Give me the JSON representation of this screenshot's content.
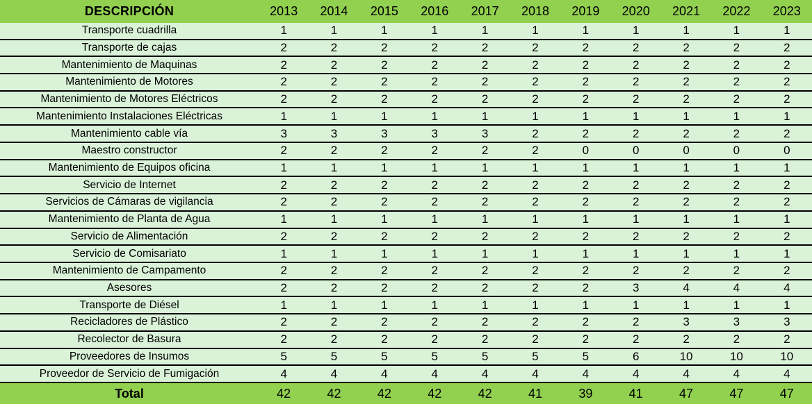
{
  "colors": {
    "header_bg": "#92D050",
    "row_bg": "#DAF2D8",
    "total_bg": "#92D050",
    "row_border": "#000000",
    "text": "#000000"
  },
  "chart_data": {
    "type": "table",
    "title": "",
    "description_header": "DESCRIPCIÓN",
    "years": [
      "2013",
      "2014",
      "2015",
      "2016",
      "2017",
      "2018",
      "2019",
      "2020",
      "2021",
      "2022",
      "2023"
    ],
    "rows": [
      {
        "description": "Transporte cuadrilla",
        "values": [
          1,
          1,
          1,
          1,
          1,
          1,
          1,
          1,
          1,
          1,
          1
        ]
      },
      {
        "description": "Transporte de cajas",
        "values": [
          2,
          2,
          2,
          2,
          2,
          2,
          2,
          2,
          2,
          2,
          2
        ]
      },
      {
        "description": "Mantenimiento de Maquinas",
        "values": [
          2,
          2,
          2,
          2,
          2,
          2,
          2,
          2,
          2,
          2,
          2
        ]
      },
      {
        "description": "Mantenimiento de Motores",
        "values": [
          2,
          2,
          2,
          2,
          2,
          2,
          2,
          2,
          2,
          2,
          2
        ]
      },
      {
        "description": "Mantenimiento de Motores Eléctricos",
        "values": [
          2,
          2,
          2,
          2,
          2,
          2,
          2,
          2,
          2,
          2,
          2
        ]
      },
      {
        "description": "Mantenimiento Instalaciones Eléctricas",
        "values": [
          1,
          1,
          1,
          1,
          1,
          1,
          1,
          1,
          1,
          1,
          1
        ]
      },
      {
        "description": "Mantenimiento cable vía",
        "values": [
          3,
          3,
          3,
          3,
          3,
          2,
          2,
          2,
          2,
          2,
          2
        ]
      },
      {
        "description": "Maestro constructor",
        "values": [
          2,
          2,
          2,
          2,
          2,
          2,
          0,
          0,
          0,
          0,
          0
        ]
      },
      {
        "description": "Mantenimiento de Equipos oficina",
        "values": [
          1,
          1,
          1,
          1,
          1,
          1,
          1,
          1,
          1,
          1,
          1
        ]
      },
      {
        "description": "Servicio de Internet",
        "values": [
          2,
          2,
          2,
          2,
          2,
          2,
          2,
          2,
          2,
          2,
          2
        ]
      },
      {
        "description": "Servicios de Cámaras de vigilancia",
        "values": [
          2,
          2,
          2,
          2,
          2,
          2,
          2,
          2,
          2,
          2,
          2
        ]
      },
      {
        "description": "Mantenimiento de Planta de Agua",
        "values": [
          1,
          1,
          1,
          1,
          1,
          1,
          1,
          1,
          1,
          1,
          1
        ]
      },
      {
        "description": "Servicio de Alimentación",
        "values": [
          2,
          2,
          2,
          2,
          2,
          2,
          2,
          2,
          2,
          2,
          2
        ]
      },
      {
        "description": "Servicio de Comisariato",
        "values": [
          1,
          1,
          1,
          1,
          1,
          1,
          1,
          1,
          1,
          1,
          1
        ]
      },
      {
        "description": "Mantenimiento de Campamento",
        "values": [
          2,
          2,
          2,
          2,
          2,
          2,
          2,
          2,
          2,
          2,
          2
        ]
      },
      {
        "description": "Asesores",
        "values": [
          2,
          2,
          2,
          2,
          2,
          2,
          2,
          3,
          4,
          4,
          4
        ]
      },
      {
        "description": "Transporte de Diésel",
        "values": [
          1,
          1,
          1,
          1,
          1,
          1,
          1,
          1,
          1,
          1,
          1
        ]
      },
      {
        "description": "Recicladores de Plástico",
        "values": [
          2,
          2,
          2,
          2,
          2,
          2,
          2,
          2,
          3,
          3,
          3
        ]
      },
      {
        "description": "Recolector de Basura",
        "values": [
          2,
          2,
          2,
          2,
          2,
          2,
          2,
          2,
          2,
          2,
          2
        ]
      },
      {
        "description": "Proveedores de Insumos",
        "values": [
          5,
          5,
          5,
          5,
          5,
          5,
          5,
          6,
          10,
          10,
          10
        ]
      },
      {
        "description": "Proveedor de Servicio de Fumigación",
        "values": [
          4,
          4,
          4,
          4,
          4,
          4,
          4,
          4,
          4,
          4,
          4
        ]
      }
    ],
    "total": {
      "label": "Total",
      "values": [
        42,
        42,
        42,
        42,
        42,
        41,
        39,
        41,
        47,
        47,
        47
      ]
    }
  }
}
